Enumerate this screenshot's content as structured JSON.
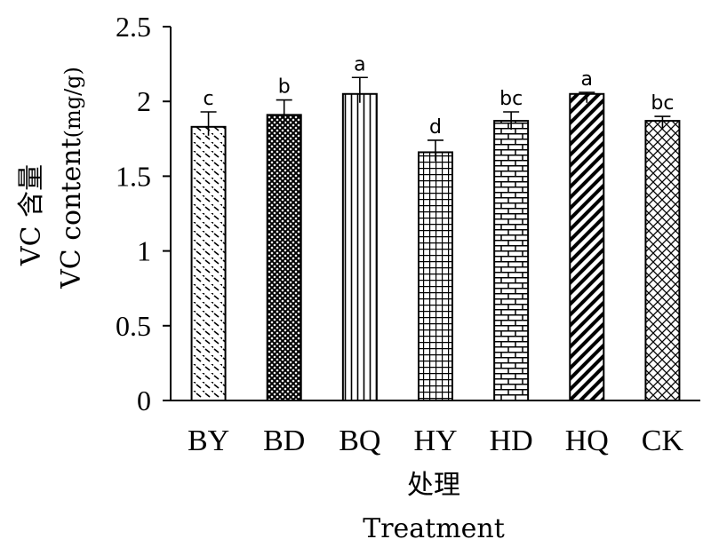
{
  "chart_data": {
    "type": "bar",
    "categories": [
      "BY",
      "BD",
      "BQ",
      "HY",
      "HD",
      "HQ",
      "CK"
    ],
    "values": [
      1.83,
      1.91,
      2.05,
      1.66,
      1.87,
      2.05,
      1.87
    ],
    "errors": [
      0.1,
      0.1,
      0.11,
      0.08,
      0.06,
      0.01,
      0.03
    ],
    "significance": [
      "c",
      "b",
      "a",
      "d",
      "bc",
      "a",
      "bc"
    ],
    "fill_patterns": [
      "diagonal-dash",
      "crosshatch-dense",
      "vertical-lines",
      "grid",
      "brick",
      "thick-diagonal",
      "diagonal-crosshatch"
    ],
    "ylim": [
      0,
      2.5
    ],
    "yticks": [
      "0",
      "0.5",
      "1",
      "1.5",
      "2",
      "2.5"
    ],
    "ylabel_cn": "VC 含量",
    "ylabel_en_main": "VC content",
    "ylabel_en_unit": "(mg/g)",
    "xlabel_cn": "处理",
    "xlabel_en": "Treatment",
    "grid": false,
    "bar_color": "#000000",
    "background": "#ffffff"
  }
}
